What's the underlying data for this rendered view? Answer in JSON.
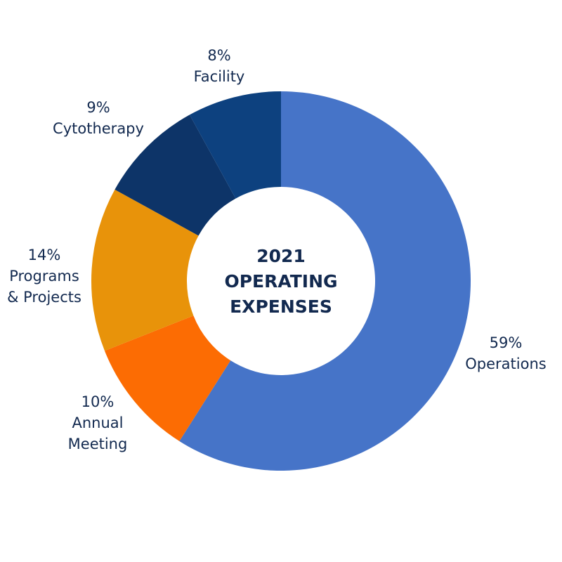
{
  "chart_data": {
    "type": "pie",
    "variant": "donut",
    "title_lines": [
      "2021",
      "OPERATING",
      "EXPENSES"
    ],
    "slices": [
      {
        "category": "Operations",
        "label_lines": [
          "59%",
          "Operations"
        ],
        "value": 59,
        "color": "#4674c8"
      },
      {
        "category": "Annual Meeting",
        "label_lines": [
          "10%",
          "Annual",
          "Meeting"
        ],
        "value": 10,
        "color": "#fc6c03"
      },
      {
        "category": "Programs & Projects",
        "label_lines": [
          "14%",
          "Programs",
          "& Projects"
        ],
        "value": 14,
        "color": "#e8930a"
      },
      {
        "category": "Cytotherapy",
        "label_lines": [
          "9%",
          "Cytotherapy"
        ],
        "value": 9,
        "color": "#0d3468"
      },
      {
        "category": "Facility",
        "label_lines": [
          "8%",
          "Facility"
        ],
        "value": 8,
        "color": "#0d417f"
      }
    ],
    "start": "12 o'clock",
    "direction": "clockwise",
    "legend": "none (labels outside slices)"
  }
}
